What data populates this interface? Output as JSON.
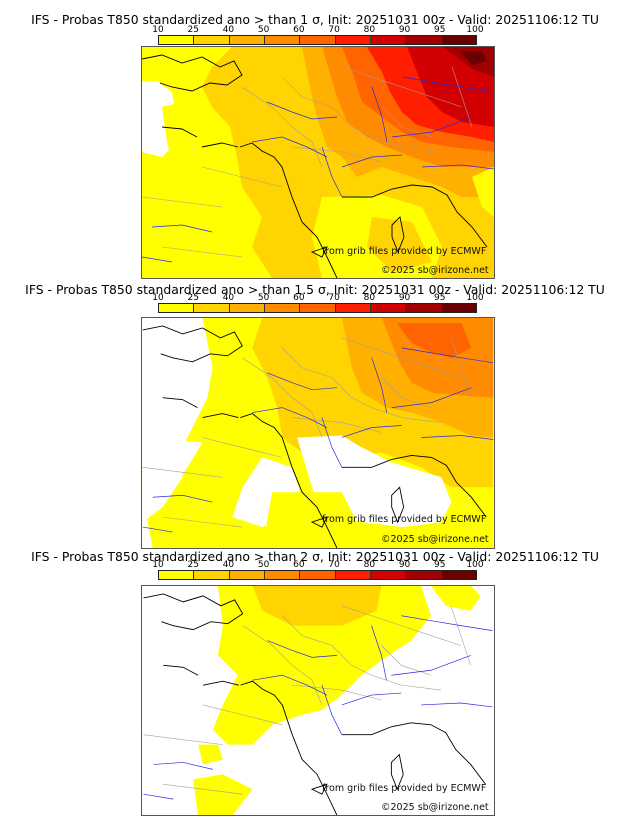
{
  "panels": [
    {
      "title": "IFS - Probas T850  standardized ano > than 1 σ, Init: 20251031 00z - Valid: 20251106:12 TU",
      "threshold_sigma": "1",
      "credit_source": "from grib files provided by ECMWF",
      "credit_copyright": "©2025 sb@irizone.net"
    },
    {
      "title": "IFS - Probas T850  standardized ano > than 1.5 σ, Init: 20251031 00z - Valid: 20251106:12 TU",
      "threshold_sigma": "1.5",
      "credit_source": "from grib files provided by ECMWF",
      "credit_copyright": "©2025 sb@irizone.net"
    },
    {
      "title": "IFS - Probas T850  standardized ano > than 2 σ, Init: 20251031 00z - Valid: 20251106:12 TU",
      "threshold_sigma": "2",
      "credit_source": "from grib files provided by ECMWF",
      "credit_copyright": "©2025 sb@irizone.net"
    }
  ],
  "colorbar": {
    "ticks": [
      "10",
      "25",
      "40",
      "50",
      "60",
      "70",
      "80",
      "90",
      "95",
      "100"
    ],
    "colors": [
      "#ffff00",
      "#ffd400",
      "#ffb000",
      "#ff8c00",
      "#ff6400",
      "#ff1e00",
      "#d20000",
      "#a00000",
      "#6a0000"
    ]
  },
  "map_colors": {
    "ocean_land_empty": "#ffffff",
    "coastline": "#000000",
    "borders": "#a0a0a0",
    "rivers": "#2a2ae0"
  }
}
